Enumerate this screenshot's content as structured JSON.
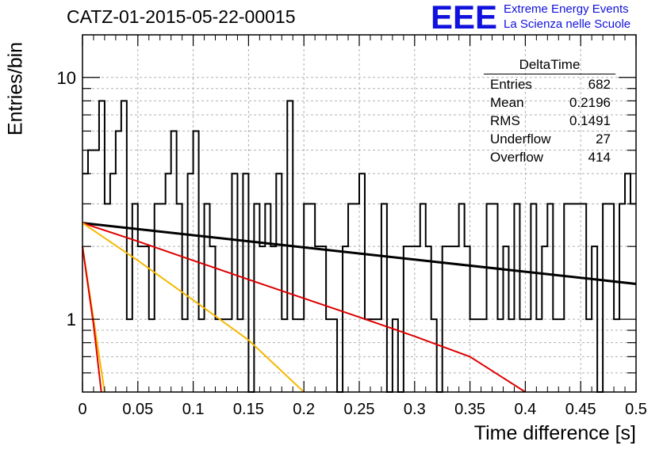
{
  "title": "CATZ-01-2015-05-22-00015",
  "logo": {
    "mark": "EEE",
    "line1": "Extreme Energy Events",
    "line2": "La Scienza nelle Scuole"
  },
  "stats": {
    "title": "DeltaTime",
    "rows": [
      {
        "label": "Entries",
        "value": "682"
      },
      {
        "label": "Mean",
        "value": "0.2196"
      },
      {
        "label": "RMS",
        "value": "0.1491"
      },
      {
        "label": "Underflow",
        "value": "27"
      },
      {
        "label": "Overflow",
        "value": "414"
      }
    ]
  },
  "chart_data": {
    "type": "histogram",
    "xlabel": "Time difference [s]",
    "ylabel": "Entries/bin",
    "xlim": [
      0,
      0.5
    ],
    "ylim": [
      0.5,
      15
    ],
    "yscale": "log",
    "grid": true,
    "x_ticks": [
      0,
      0.05,
      0.1,
      0.15,
      0.2,
      0.25,
      0.3,
      0.35,
      0.4,
      0.45,
      0.5
    ],
    "x_tick_labels": [
      "0",
      "0.05",
      "0.1",
      "0.15",
      "0.2",
      "0.25",
      "0.3",
      "0.35",
      "0.4",
      "0.45",
      "0.5"
    ],
    "y_ticks": [
      1,
      10
    ],
    "y_tick_labels": [
      "1",
      "10"
    ],
    "bin_width": 0.005,
    "counts": [
      4,
      5,
      5,
      8,
      3,
      4,
      6,
      8,
      1,
      3,
      2,
      2,
      1,
      3,
      3,
      4,
      6,
      3,
      1,
      4,
      6,
      1,
      3,
      2,
      1,
      1,
      1,
      4,
      1,
      4,
      0,
      3,
      2,
      3,
      2,
      4,
      1,
      8,
      1,
      1,
      3,
      3,
      2,
      2,
      1,
      1,
      0,
      2,
      3,
      3,
      4,
      1,
      1,
      1,
      3,
      0,
      1,
      0,
      2,
      2,
      2,
      3,
      2,
      1,
      0,
      2,
      2,
      2,
      3,
      2,
      1,
      1,
      1,
      3,
      3,
      1,
      2,
      1,
      3,
      1,
      1,
      3,
      1,
      2,
      3,
      1,
      1,
      3,
      3,
      3,
      3,
      1,
      2,
      0,
      3,
      3,
      1,
      3,
      4,
      3
    ],
    "curves": [
      {
        "color": "#000000",
        "x": [
          0,
          0.5
        ],
        "y": [
          2.5,
          1.4
        ]
      },
      {
        "color": "#dd0000",
        "x": [
          0,
          0.05,
          0.1,
          0.15,
          0.2,
          0.25,
          0.3,
          0.35,
          0.4
        ],
        "y": [
          2.5,
          2.1,
          1.75,
          1.46,
          1.22,
          1.02,
          0.85,
          0.7,
          0.5
        ]
      },
      {
        "color": "#f5b800",
        "x": [
          0,
          0.05,
          0.1,
          0.15,
          0.2
        ],
        "y": [
          2.5,
          1.75,
          1.2,
          0.82,
          0.5
        ]
      },
      {
        "color": "#f5b800",
        "x": [
          0,
          0.01,
          0.02
        ],
        "y": [
          2.0,
          1.0,
          0.5
        ]
      },
      {
        "color": "#dd0000",
        "x": [
          0,
          0.01,
          0.017
        ],
        "y": [
          2.0,
          0.95,
          0.5
        ]
      }
    ]
  }
}
